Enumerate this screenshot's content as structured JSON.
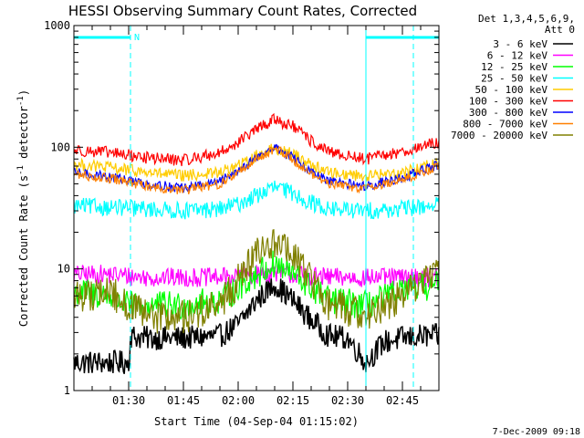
{
  "chart_data": {
    "type": "line",
    "title": "HESSI Observing Summary Count Rates, Corrected",
    "xlabel": "Start Time (04-Sep-04 01:15:02)",
    "ylabel_main": "Corrected Count Rate (s",
    "ylabel_sup1": "-1",
    "ylabel_mid": " detector",
    "ylabel_sup2": "-1",
    "ylabel_end": ")",
    "yscale": "log",
    "ylim": [
      1,
      1000
    ],
    "xlim_minutes": [
      0,
      100
    ],
    "y_ticks": [
      "1",
      "10",
      "100",
      "1000"
    ],
    "x_ticks": [
      {
        "label": "01:30",
        "minute": 15
      },
      {
        "label": "01:45",
        "minute": 30
      },
      {
        "label": "02:00",
        "minute": 45
      },
      {
        "label": "02:15",
        "minute": 60
      },
      {
        "label": "02:30",
        "minute": 75
      },
      {
        "label": "02:45",
        "minute": 90
      }
    ],
    "legend": {
      "header1": "Det 1,3,4,5,6,9,",
      "header2": "Att 0",
      "placement": "right"
    },
    "markers": {
      "night_label": "N",
      "night_intervals_minutes": [
        [
          0,
          15.5
        ],
        [
          80,
          100
        ]
      ],
      "saa_lines_minutes": [
        15.5,
        80,
        93
      ]
    },
    "series": [
      {
        "name": "3 - 6 keV",
        "color": "#000000",
        "x": [
          0,
          15,
          15.5,
          20,
          30,
          40,
          45,
          50,
          55,
          60,
          65,
          70,
          75,
          80,
          85,
          90,
          95,
          100
        ],
        "y": [
          1.7,
          1.7,
          2.8,
          2.7,
          2.7,
          2.8,
          3.5,
          5.5,
          7.5,
          5.5,
          3.8,
          2.8,
          2.7,
          1.7,
          2.5,
          2.7,
          2.8,
          2.8
        ]
      },
      {
        "name": "6 - 12 keV",
        "color": "#ff00ff",
        "x": [
          0,
          10,
          20,
          30,
          40,
          50,
          55,
          60,
          70,
          80,
          90,
          100
        ],
        "y": [
          9,
          9,
          8.5,
          8.5,
          8.5,
          9,
          9.5,
          9,
          8.5,
          8.5,
          8.5,
          8.5
        ]
      },
      {
        "name": "12 - 25 keV",
        "color": "#00ff00",
        "x": [
          0,
          10,
          15,
          20,
          30,
          40,
          45,
          50,
          55,
          60,
          65,
          70,
          80,
          90,
          100
        ],
        "y": [
          6.5,
          6,
          5,
          5,
          5,
          5.5,
          7,
          9,
          11,
          9,
          7,
          5.5,
          5,
          6.5,
          7.5
        ]
      },
      {
        "name": "25 - 50 keV",
        "color": "#00ffff",
        "x": [
          0,
          10,
          20,
          30,
          40,
          45,
          50,
          55,
          60,
          65,
          70,
          80,
          90,
          100
        ],
        "y": [
          33,
          32,
          31,
          30,
          31,
          34,
          40,
          47,
          42,
          35,
          31,
          30,
          31,
          34
        ]
      },
      {
        "name": "50 - 100 keV",
        "color": "#ffcc00",
        "x": [
          0,
          10,
          20,
          30,
          40,
          45,
          50,
          55,
          60,
          65,
          70,
          80,
          90,
          100
        ],
        "y": [
          72,
          68,
          62,
          58,
          62,
          70,
          85,
          98,
          88,
          72,
          62,
          58,
          62,
          75
        ]
      },
      {
        "name": "100 - 300 keV",
        "color": "#ff0000",
        "x": [
          0,
          10,
          20,
          30,
          40,
          45,
          50,
          55,
          60,
          65,
          70,
          80,
          90,
          100
        ],
        "y": [
          95,
          90,
          82,
          78,
          90,
          110,
          140,
          170,
          148,
          112,
          90,
          80,
          92,
          110
        ]
      },
      {
        "name": "300 - 800 keV",
        "color": "#0000ff",
        "x": [
          0,
          10,
          20,
          30,
          40,
          45,
          50,
          55,
          60,
          65,
          70,
          80,
          90,
          100
        ],
        "y": [
          62,
          57,
          50,
          46,
          52,
          65,
          82,
          100,
          82,
          62,
          52,
          48,
          56,
          72
        ]
      },
      {
        "name": "800 - 7000 keV",
        "color": "#ff8000",
        "x": [
          0,
          10,
          20,
          30,
          40,
          45,
          50,
          55,
          60,
          65,
          70,
          80,
          90,
          100
        ],
        "y": [
          60,
          55,
          48,
          44,
          50,
          62,
          80,
          98,
          80,
          60,
          50,
          46,
          54,
          70
        ]
      },
      {
        "name": "7000 - 20000 keV",
        "color": "#808000",
        "x": [
          0,
          10,
          15,
          20,
          30,
          40,
          45,
          50,
          55,
          60,
          65,
          70,
          80,
          90,
          100
        ],
        "y": [
          6,
          6.5,
          5,
          4,
          4,
          5,
          8,
          13,
          17,
          13,
          8,
          5,
          4.2,
          6,
          10
        ]
      }
    ]
  },
  "footer": {
    "date_stamp": "7-Dec-2009 09:18"
  }
}
